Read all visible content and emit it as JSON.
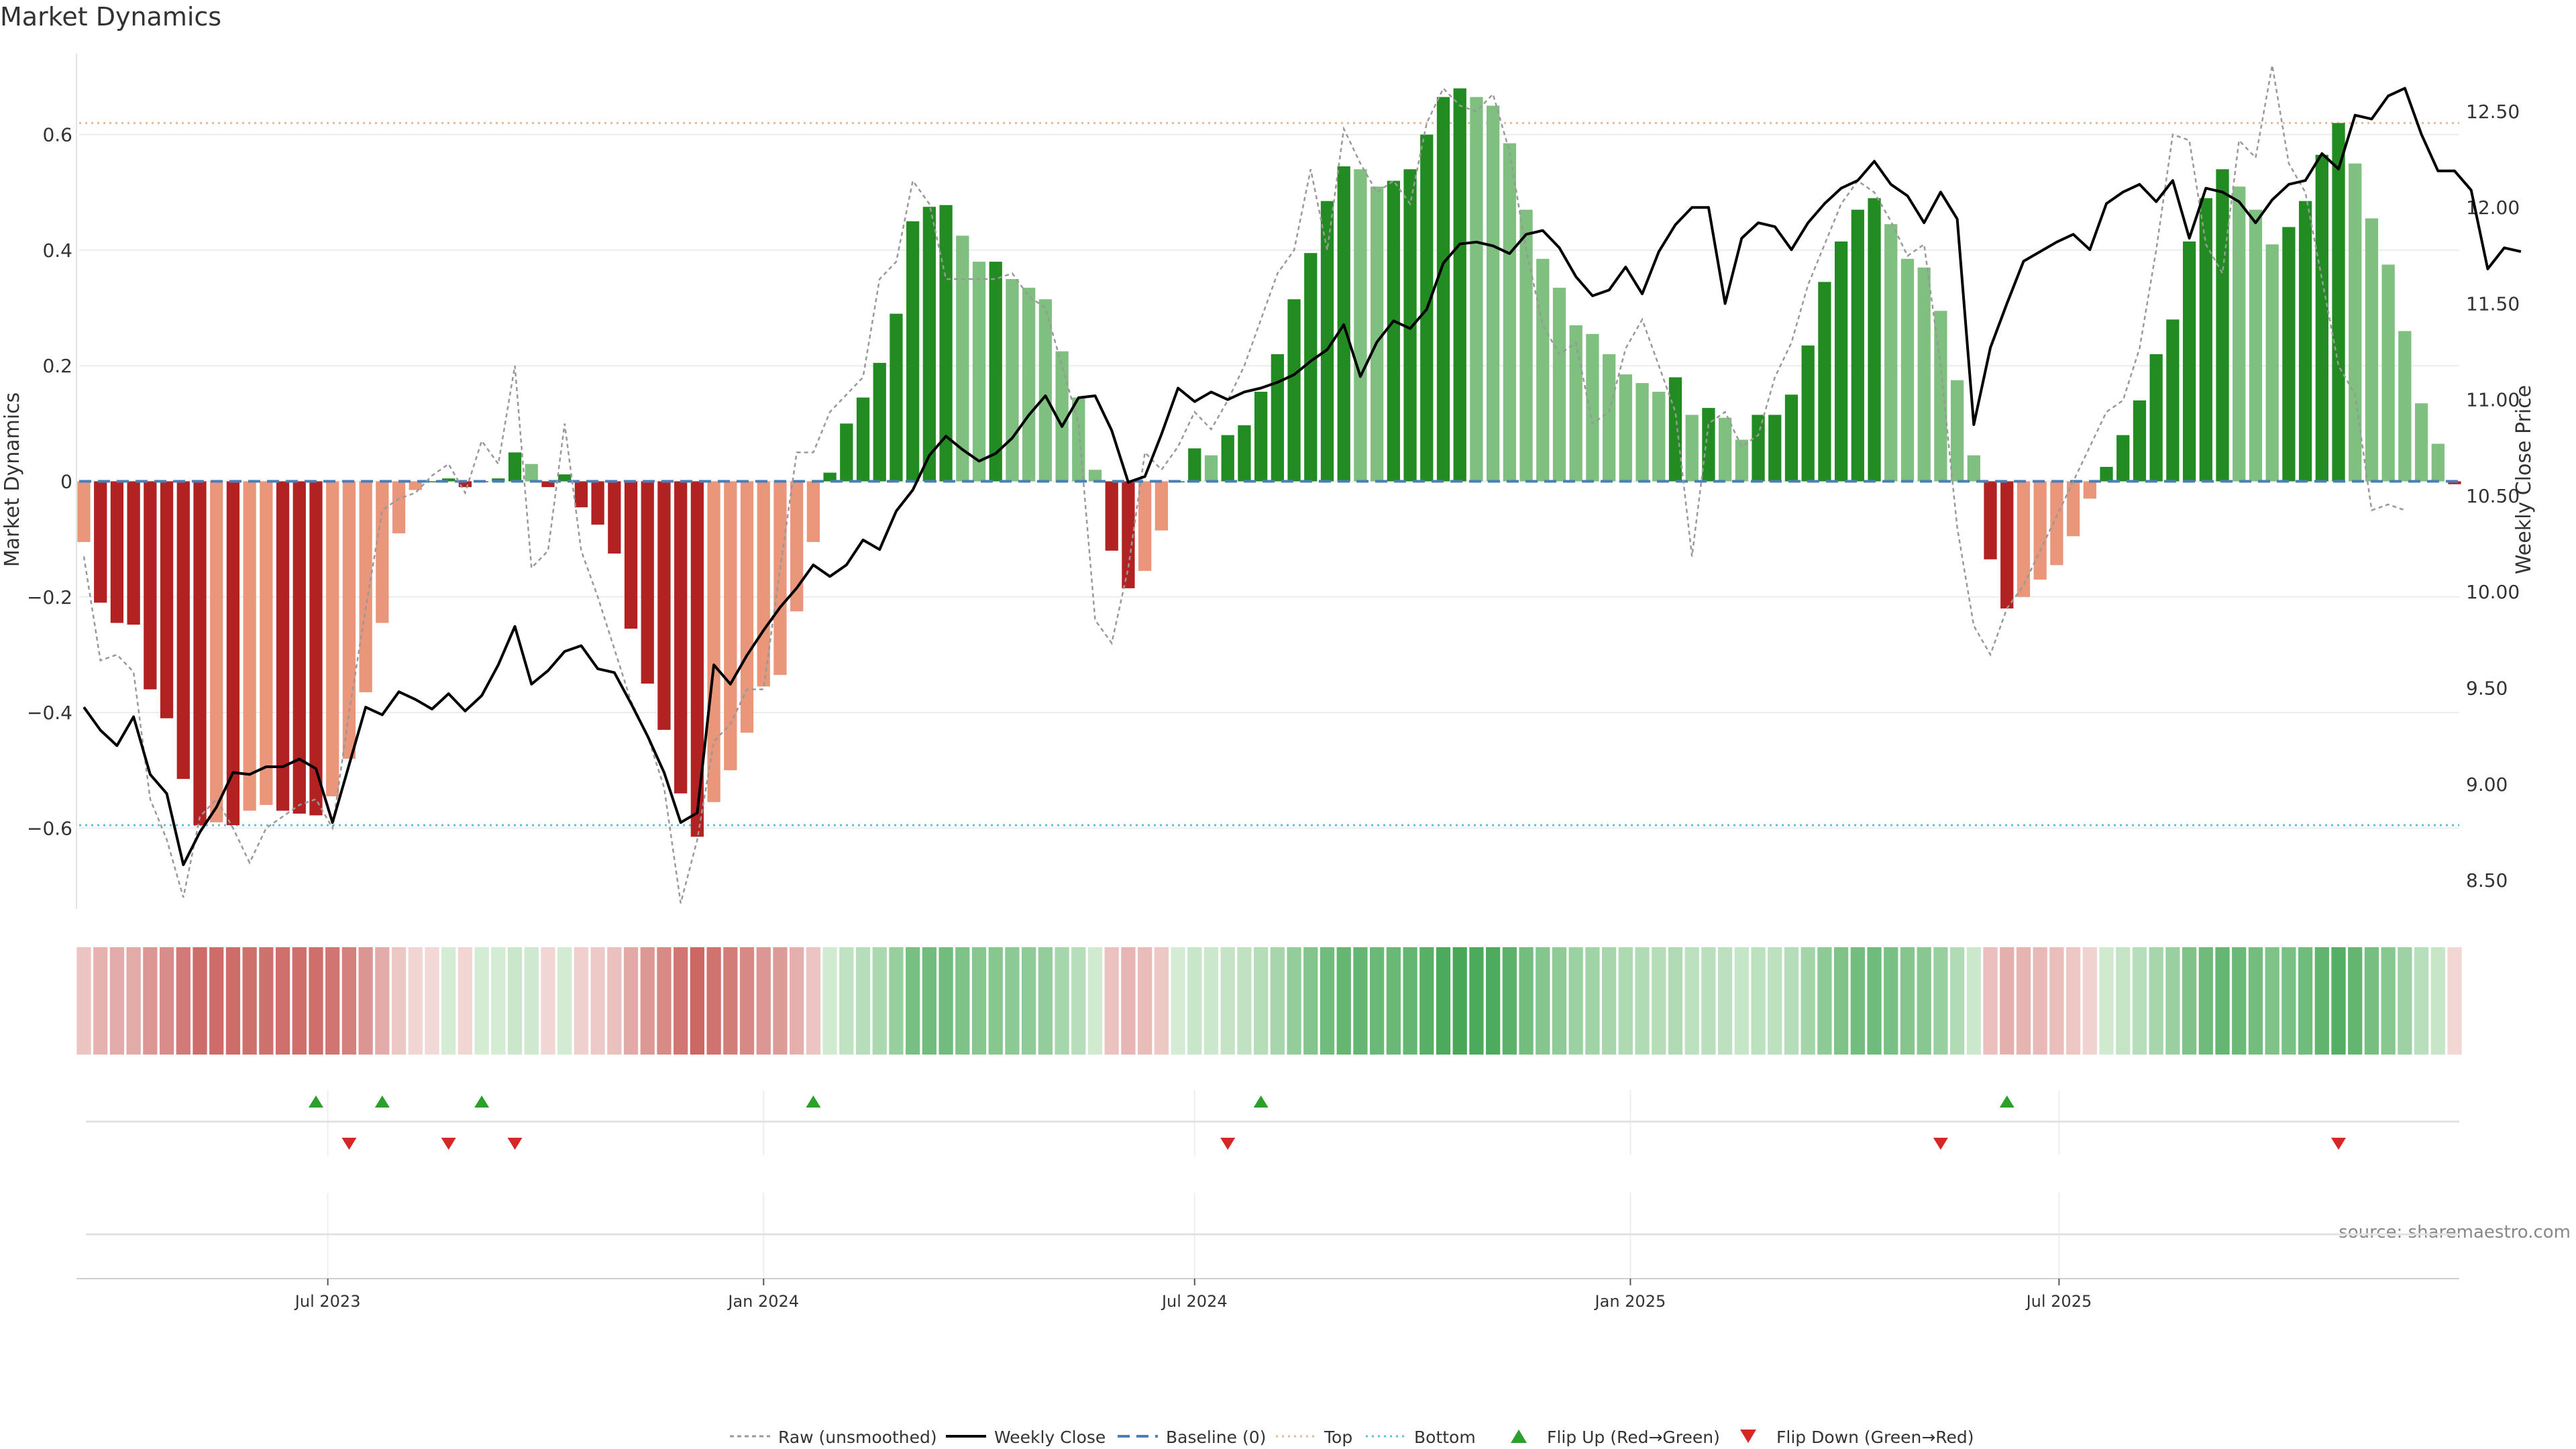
{
  "chart_data": {
    "type": "bar",
    "title": "Market Dynamics",
    "ylabel": "Market Dynamics",
    "y2label": "Weekly Close Price",
    "ylim": [
      -0.74,
      0.74
    ],
    "y2lim": [
      8.35,
      12.8
    ],
    "yticks": [
      -0.6,
      -0.4,
      -0.2,
      0,
      0.2,
      0.4,
      0.6
    ],
    "yticklabels": [
      "−0.6",
      "−0.4",
      "−0.2",
      "0",
      "0.2",
      "0.4",
      "0.6"
    ],
    "y2ticks": [
      8.5,
      9.0,
      9.5,
      10.0,
      10.5,
      11.0,
      11.5,
      12.0,
      12.5
    ],
    "y2ticklabels": [
      "8.50",
      "9.00",
      "9.50",
      "10.00",
      "10.50",
      "11.00",
      "11.50",
      "12.00",
      "12.50"
    ],
    "x_start": "2023-03-20",
    "x_step_weeks": 1,
    "xticks": [
      "Jul 2023",
      "Jan 2024",
      "Jul 2024",
      "Jan 2025",
      "Jul 2025"
    ],
    "xtick_dates": [
      "2023-07-01",
      "2024-01-01",
      "2024-07-01",
      "2025-01-01",
      "2025-07-01"
    ],
    "top_level": 0.62,
    "bottom_level": -0.595,
    "baseline": 0,
    "grid": true,
    "legend_position": "bottom-center",
    "source": "source: sharemaestro.com",
    "colors": {
      "strong_red": "#b22222",
      "weak_red": "#e9967a",
      "strong_green": "#228b22",
      "weak_green": "#7fbf7f",
      "close": "#000000",
      "raw": "#999999",
      "baseline": "#4a7fb5",
      "top": "#e8b89a",
      "bottom": "#5bc0de",
      "flip_up": "#2ca02c",
      "flip_down": "#d62728"
    },
    "series": [
      {
        "name": "Market Dynamics",
        "values": [
          -0.105,
          -0.21,
          -0.245,
          -0.248,
          -0.36,
          -0.41,
          -0.515,
          -0.595,
          -0.59,
          -0.595,
          -0.57,
          -0.56,
          -0.57,
          -0.575,
          -0.578,
          -0.545,
          -0.48,
          -0.365,
          -0.245,
          -0.09,
          -0.015,
          0,
          0.005,
          -0.01,
          0,
          0.005,
          0.05,
          0.03,
          -0.01,
          0.012,
          -0.045,
          -0.075,
          -0.125,
          -0.255,
          -0.35,
          -0.43,
          -0.54,
          -0.615,
          -0.555,
          -0.5,
          -0.435,
          -0.355,
          -0.335,
          -0.225,
          -0.105,
          0.015,
          0.1,
          0.145,
          0.205,
          0.29,
          0.45,
          0.475,
          0.478,
          0.425,
          0.38,
          0.38,
          0.35,
          0.335,
          0.315,
          0.225,
          0.145,
          0.02,
          -0.12,
          -0.185,
          -0.155,
          -0.085,
          0,
          0.057,
          0.045,
          0.08,
          0.097,
          0.155,
          0.22,
          0.315,
          0.395,
          0.485,
          0.545,
          0.54,
          0.51,
          0.52,
          0.54,
          0.6,
          0.665,
          0.68,
          0.665,
          0.65,
          0.585,
          0.47,
          0.385,
          0.335,
          0.27,
          0.255,
          0.22,
          0.185,
          0.17,
          0.155,
          0.18,
          0.115,
          0.127,
          0.11,
          0.072,
          0.115,
          0.115,
          0.15,
          0.235,
          0.345,
          0.415,
          0.47,
          0.49,
          0.445,
          0.385,
          0.37,
          0.295,
          0.175,
          0.045,
          -0.135,
          -0.22,
          -0.2,
          -0.17,
          -0.145,
          -0.095,
          -0.03,
          0.025,
          0.08,
          0.14,
          0.22,
          0.28,
          0.415,
          0.49,
          0.54,
          0.51,
          0.47,
          0.41,
          0.44,
          0.485,
          0.565,
          0.62,
          0.55,
          0.455,
          0.375,
          0.26,
          0.135,
          0.065,
          -0.005
        ]
      },
      {
        "name": "Raw (unsmoothed)",
        "values": [
          -0.13,
          -0.31,
          -0.3,
          -0.33,
          -0.55,
          -0.62,
          -0.72,
          -0.58,
          -0.55,
          -0.6,
          -0.66,
          -0.6,
          -0.58,
          -0.56,
          -0.55,
          -0.6,
          -0.4,
          -0.22,
          -0.05,
          -0.03,
          -0.02,
          0.01,
          0.03,
          -0.02,
          0.07,
          0.03,
          0.2,
          -0.15,
          -0.12,
          0.1,
          -0.12,
          -0.2,
          -0.29,
          -0.38,
          -0.44,
          -0.53,
          -0.73,
          -0.62,
          -0.45,
          -0.42,
          -0.36,
          -0.36,
          -0.15,
          0.05,
          0.05,
          0.12,
          0.15,
          0.18,
          0.35,
          0.38,
          0.52,
          0.48,
          0.35,
          0.35,
          0.35,
          0.35,
          0.36,
          0.32,
          0.3,
          0.2,
          0.1,
          -0.24,
          -0.28,
          -0.15,
          0.05,
          0.02,
          0.06,
          0.12,
          0.09,
          0.14,
          0.2,
          0.28,
          0.36,
          0.4,
          0.54,
          0.4,
          0.61,
          0.55,
          0.5,
          0.52,
          0.48,
          0.62,
          0.68,
          0.65,
          0.64,
          0.67,
          0.57,
          0.4,
          0.27,
          0.22,
          0.24,
          0.1,
          0.12,
          0.23,
          0.28,
          0.2,
          0.12,
          -0.13,
          0.1,
          0.12,
          0.06,
          0.08,
          0.18,
          0.24,
          0.34,
          0.41,
          0.48,
          0.52,
          0.5,
          0.45,
          0.39,
          0.41,
          0.2,
          -0.08,
          -0.25,
          -0.3,
          -0.22,
          -0.18,
          -0.12,
          -0.06,
          0,
          0.06,
          0.12,
          0.14,
          0.23,
          0.4,
          0.6,
          0.59,
          0.41,
          0.36,
          0.59,
          0.56,
          0.72,
          0.55,
          0.5,
          0.35,
          0.2,
          0.15,
          -0.05,
          -0.04,
          -0.05
        ]
      },
      {
        "name": "Weekly Close",
        "axis": "right",
        "values": [
          9.4,
          9.28,
          9.2,
          9.35,
          9.05,
          8.95,
          8.58,
          8.75,
          8.88,
          9.06,
          9.05,
          9.09,
          9.09,
          9.13,
          9.08,
          8.8,
          9.1,
          9.4,
          9.36,
          9.48,
          9.44,
          9.39,
          9.47,
          9.38,
          9.46,
          9.62,
          9.82,
          9.52,
          9.59,
          9.69,
          9.72,
          9.6,
          9.58,
          9.42,
          9.25,
          9.06,
          8.8,
          8.85,
          9.62,
          9.52,
          9.67,
          9.8,
          9.92,
          10.02,
          10.14,
          10.08,
          10.14,
          10.27,
          10.22,
          10.42,
          10.53,
          10.71,
          10.81,
          10.74,
          10.68,
          10.72,
          10.8,
          10.92,
          11.02,
          10.86,
          11.01,
          11.02,
          10.84,
          10.57,
          10.6,
          10.82,
          11.06,
          10.99,
          11.04,
          11,
          11.04,
          11.06,
          11.09,
          11.13,
          11.2,
          11.26,
          11.39,
          11.12,
          11.3,
          11.41,
          11.37,
          11.47,
          11.71,
          11.81,
          11.82,
          11.8,
          11.76,
          11.86,
          11.88,
          11.79,
          11.64,
          11.54,
          11.57,
          11.69,
          11.55,
          11.77,
          11.91,
          12.0,
          12,
          11.5,
          11.84,
          11.92,
          11.9,
          11.78,
          11.92,
          12.02,
          12.1,
          12.14,
          12.24,
          12.12,
          12.06,
          11.92,
          12.08,
          11.94,
          10.87,
          11.27,
          11.5,
          11.72,
          11.77,
          11.82,
          11.86,
          11.78,
          12.02,
          12.08,
          12.12,
          12.03,
          12.14,
          11.84,
          12.1,
          12.08,
          12.03,
          11.92,
          12.04,
          12.12,
          12.14,
          12.28,
          12.2,
          12.48,
          12.46,
          12.58,
          12.62,
          12.38,
          12.19,
          12.19,
          12.09,
          11.68,
          11.79,
          11.77
        ]
      }
    ],
    "strength": [
      -1,
      -1,
      -1,
      -1,
      -1,
      -1,
      -1,
      -1,
      -1,
      -1,
      -1,
      -1,
      -1,
      -1,
      -1,
      -1,
      -1,
      -1,
      -1,
      -1,
      -1,
      -1,
      1,
      -1,
      1,
      1,
      1,
      1,
      -1,
      1,
      -1,
      -1,
      -1,
      -1,
      -1,
      -1,
      -1,
      -1,
      -1,
      -1,
      -1,
      -1,
      -1,
      -1,
      -1,
      1,
      1,
      1,
      1,
      1,
      1,
      1,
      1,
      1,
      1,
      1,
      1,
      1,
      1,
      1,
      1,
      1,
      -1,
      -1,
      -1,
      -1,
      1,
      1,
      1,
      1,
      1,
      1,
      1,
      1,
      1,
      1,
      1,
      1,
      1,
      1,
      1,
      1,
      1,
      1,
      1,
      1,
      1,
      1,
      1,
      1,
      1,
      1,
      1,
      1,
      1,
      1,
      1,
      1,
      1,
      1,
      1,
      1,
      1,
      1,
      1,
      1,
      1,
      1,
      1,
      1,
      1,
      1,
      1,
      1,
      1,
      -1,
      -1,
      -1,
      -1,
      -1,
      -1,
      -1,
      1,
      1,
      1,
      1,
      1,
      1,
      1,
      1,
      1,
      1,
      1,
      1,
      1,
      1,
      1,
      1,
      1,
      1,
      1,
      1,
      1,
      -1
    ],
    "flip_up_dates": [
      "2023-06-26",
      "2023-07-24",
      "2023-09-04",
      "2024-01-22",
      "2024-07-29",
      "2025-06-09"
    ],
    "flip_down_dates": [
      "2023-07-10",
      "2023-08-21",
      "2023-09-18",
      "2024-07-15",
      "2025-05-12",
      "2025-10-27"
    ],
    "legend": [
      {
        "label": "Raw (unsmoothed)",
        "style": "dotted-line"
      },
      {
        "label": "Weekly Close",
        "style": "solid-line"
      },
      {
        "label": "Baseline (0)",
        "style": "dashed-line"
      },
      {
        "label": "Top",
        "style": "dotted-line"
      },
      {
        "label": "Bottom",
        "style": "dotted-line"
      },
      {
        "label": "Flip Up (Red→Green)",
        "style": "triangle-up"
      },
      {
        "label": "Flip Down (Green→Red)",
        "style": "triangle-down"
      }
    ]
  }
}
